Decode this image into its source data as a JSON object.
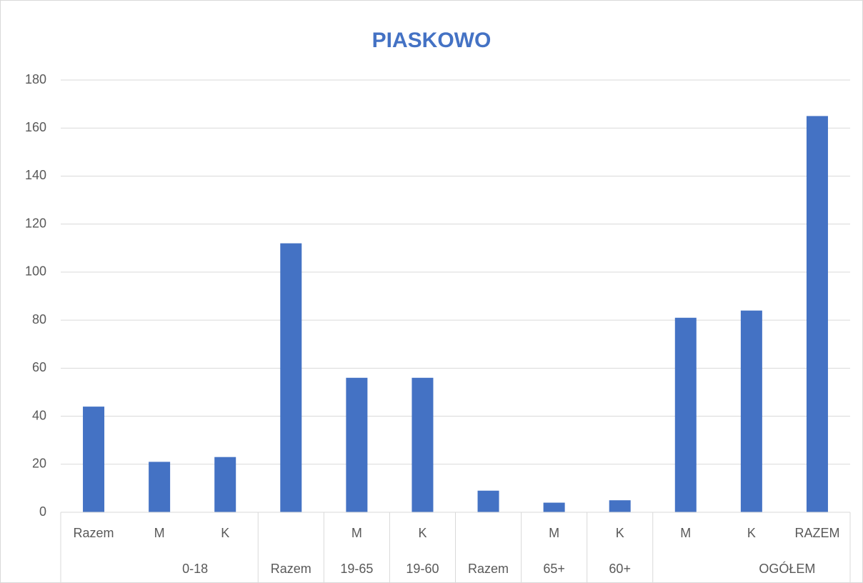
{
  "chart_data": {
    "type": "bar",
    "title": "PIASKOWO",
    "categories": [
      "Razem",
      "M",
      "K",
      null,
      "M",
      "K",
      null,
      "M",
      "K",
      "M",
      "K",
      "RAZEM"
    ],
    "groups": [
      {
        "label": "0-18",
        "span": 3
      },
      {
        "label": "Razem",
        "span": 1
      },
      {
        "label": "19-65",
        "span": 1
      },
      {
        "label": "19-60",
        "span": 1
      },
      {
        "label": "Razem",
        "span": 1
      },
      {
        "label": "65+",
        "span": 1
      },
      {
        "label": "60+",
        "span": 1
      },
      {
        "label": "OGÓŁEM",
        "span": 3
      }
    ],
    "values": [
      44,
      21,
      23,
      112,
      56,
      56,
      9,
      4,
      5,
      81,
      84,
      165
    ],
    "color": "#4472c4",
    "ylim": [
      0,
      180
    ],
    "yticks": [
      0,
      20,
      40,
      60,
      80,
      100,
      120,
      140,
      160,
      180
    ],
    "grid": true
  }
}
